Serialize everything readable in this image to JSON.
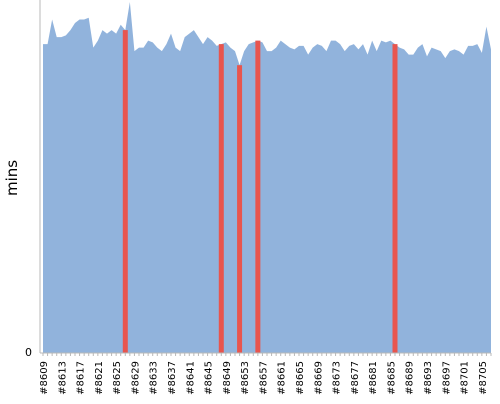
{
  "chart_data": {
    "type": "area",
    "title": "",
    "xlabel": "",
    "ylabel": "mins",
    "y_tick_labels": [
      "0"
    ],
    "ylim": [
      0,
      100
    ],
    "grid": false,
    "legend": "none",
    "colors": {
      "area": "#91b3dc",
      "highlight": "#e8554e",
      "axis": "#b8b8b8"
    },
    "x": [
      "#8609",
      "#8610",
      "#8611",
      "#8612",
      "#8613",
      "#8614",
      "#8615",
      "#8616",
      "#8617",
      "#8618",
      "#8619",
      "#8620",
      "#8621",
      "#8622",
      "#8623",
      "#8624",
      "#8625",
      "#8626",
      "#8627",
      "#8628",
      "#8629",
      "#8630",
      "#8631",
      "#8632",
      "#8633",
      "#8634",
      "#8635",
      "#8636",
      "#8637",
      "#8638",
      "#8639",
      "#8640",
      "#8641",
      "#8642",
      "#8643",
      "#8644",
      "#8645",
      "#8646",
      "#8647",
      "#8648",
      "#8649",
      "#8650",
      "#8651",
      "#8652",
      "#8653",
      "#8654",
      "#8655",
      "#8656",
      "#8657",
      "#8658",
      "#8659",
      "#8660",
      "#8661",
      "#8662",
      "#8663",
      "#8664",
      "#8665",
      "#8666",
      "#8667",
      "#8668",
      "#8669",
      "#8670",
      "#8671",
      "#8672",
      "#8673",
      "#8674",
      "#8675",
      "#8676",
      "#8677",
      "#8678",
      "#8679",
      "#8680",
      "#8681",
      "#8682",
      "#8683",
      "#8684",
      "#8685",
      "#8686",
      "#8687",
      "#8688",
      "#8689",
      "#8690",
      "#8691",
      "#8692",
      "#8693",
      "#8694",
      "#8695",
      "#8696",
      "#8697",
      "#8698",
      "#8699",
      "#8700",
      "#8701",
      "#8702",
      "#8703",
      "#8704",
      "#8705",
      "#8706",
      "#8707"
    ],
    "x_tick_labels": [
      "#8609",
      "#8613",
      "#8617",
      "#8621",
      "#8625",
      "#8629",
      "#8633",
      "#8637",
      "#8641",
      "#8645",
      "#8649",
      "#8653",
      "#8657",
      "#8661",
      "#8665",
      "#8669",
      "#8673",
      "#8677",
      "#8681",
      "#8685",
      "#8689",
      "#8693",
      "#8697",
      "#8701",
      "#8705"
    ],
    "values": [
      88,
      88,
      95,
      90,
      90,
      90.5,
      92,
      94,
      95,
      95,
      95.5,
      87,
      89,
      92,
      91,
      92,
      91,
      93.5,
      92,
      100,
      86,
      87,
      87,
      89,
      88.5,
      87,
      86,
      88,
      91,
      87,
      86,
      90,
      91,
      92,
      90,
      88,
      90,
      89,
      87.5,
      88,
      88.5,
      87,
      86,
      82,
      86,
      88,
      88.5,
      89,
      88.5,
      86,
      86,
      87,
      89,
      88,
      87,
      86.5,
      87.5,
      87.5,
      85,
      87,
      88,
      87.5,
      86,
      89,
      89,
      88,
      86,
      87.5,
      88,
      86.5,
      88,
      85,
      89,
      86,
      89,
      88.5,
      89,
      88,
      87,
      86.5,
      85,
      85,
      87,
      88,
      84.5,
      87,
      86.5,
      86,
      84,
      86,
      86.5,
      86,
      85,
      87.5,
      87.5,
      88,
      85.5,
      93,
      86.5
    ],
    "highlighted_builds": [
      "#8627",
      "#8648",
      "#8652",
      "#8656",
      "#8686"
    ]
  }
}
